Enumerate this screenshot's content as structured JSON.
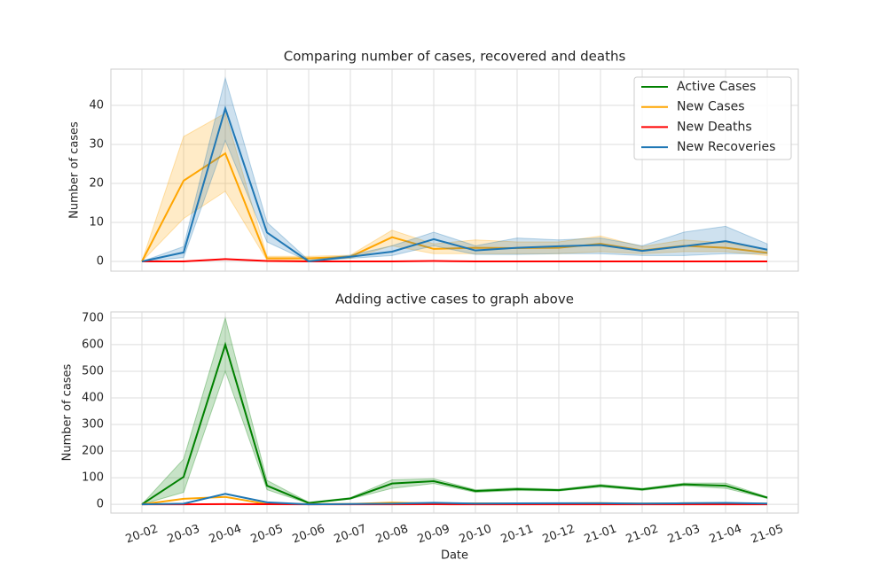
{
  "chart_data": [
    {
      "type": "line",
      "title": "Comparing number of cases, recovered and deaths",
      "ylabel": "Number of cases",
      "categories": [
        "20-02",
        "20-03",
        "20-04",
        "20-05",
        "20-06",
        "20-07",
        "20-08",
        "20-09",
        "20-10",
        "20-11",
        "20-12",
        "21-01",
        "21-02",
        "21-03",
        "21-04",
        "21-05"
      ],
      "ylim": [
        -2.5,
        49.3
      ],
      "yticks": [
        0,
        10,
        20,
        30,
        40
      ],
      "grid": true,
      "legend": "upper right",
      "series": [
        {
          "name": "Active Cases",
          "color": "#008000",
          "values": [
            null,
            null,
            null,
            null,
            null,
            null,
            null,
            null,
            null,
            null,
            null,
            null,
            null,
            null,
            null,
            null
          ]
        },
        {
          "name": "New Cases",
          "color": "#ffa500",
          "values": [
            0,
            20.7,
            27.7,
            0.8,
            0.8,
            1.2,
            6.2,
            3.2,
            3.5,
            3.4,
            3.5,
            4.5,
            2.8,
            4.0,
            3.5,
            2.2
          ],
          "band_low": [
            0,
            11,
            18,
            0.3,
            0.3,
            0.8,
            4,
            2,
            2,
            2,
            2,
            2.5,
            2,
            2.5,
            2.5,
            1.5
          ],
          "band_high": [
            0,
            32,
            38,
            1.3,
            1.3,
            1.6,
            8,
            4.5,
            5.5,
            5,
            5,
            6.5,
            3.8,
            5.5,
            4.8,
            3
          ]
        },
        {
          "name": "New Deaths",
          "color": "#ff0000",
          "values": [
            0,
            0,
            0.6,
            0.1,
            0,
            0,
            0,
            0.1,
            0,
            0,
            0,
            0,
            0,
            0,
            0,
            0
          ]
        },
        {
          "name": "New Recoveries",
          "color": "#1f77b4",
          "values": [
            0,
            2.3,
            39.2,
            7.4,
            0,
            1.2,
            2.5,
            5.7,
            2.8,
            3.5,
            3.9,
            4.2,
            2.7,
            3.9,
            5.2,
            3.0
          ],
          "band_low": [
            0,
            1,
            31,
            5,
            0,
            0.8,
            1.5,
            4,
            1.8,
            1.8,
            2,
            2,
            1.5,
            1.5,
            2,
            2
          ],
          "band_high": [
            0,
            3.8,
            47,
            10,
            0.3,
            1.6,
            4,
            7.5,
            4,
            6,
            5.5,
            6,
            4,
            7.5,
            9,
            4.5
          ]
        }
      ]
    },
    {
      "type": "line",
      "title": "Adding active cases to graph above",
      "ylabel": "Number of cases",
      "xlabel": "Date",
      "categories": [
        "20-02",
        "20-03",
        "20-04",
        "20-05",
        "20-06",
        "20-07",
        "20-08",
        "20-09",
        "20-10",
        "20-11",
        "20-12",
        "21-01",
        "21-02",
        "21-03",
        "21-04",
        "21-05"
      ],
      "ylim": [
        -33,
        723
      ],
      "yticks": [
        0,
        100,
        200,
        300,
        400,
        500,
        600,
        700
      ],
      "grid": true,
      "series": [
        {
          "color": "#008000",
          "values": [
            0,
            103,
            600,
            70,
            5,
            22,
            78,
            87,
            50,
            57,
            53,
            70,
            56,
            75,
            70,
            25
          ],
          "band_low": [
            0,
            45,
            500,
            55,
            3,
            20,
            60,
            78,
            45,
            52,
            50,
            65,
            52,
            70,
            60,
            22
          ],
          "band_high": [
            0,
            170,
            700,
            90,
            8,
            25,
            92,
            96,
            55,
            62,
            57,
            75,
            60,
            80,
            80,
            28
          ]
        },
        {
          "color": "#ffa500",
          "values": [
            0,
            20.7,
            27.7,
            0.8,
            0.8,
            1.2,
            6.2,
            3.2,
            3.5,
            3.4,
            3.5,
            4.5,
            2.8,
            4.0,
            3.5,
            2.2
          ]
        },
        {
          "color": "#ff0000",
          "values": [
            0,
            0,
            0.6,
            0.1,
            0,
            0,
            0,
            0.1,
            0,
            0,
            0,
            0,
            0,
            0,
            0,
            0
          ]
        },
        {
          "color": "#1f77b4",
          "values": [
            0,
            2.3,
            39.2,
            7.4,
            0,
            1.2,
            2.5,
            5.7,
            2.8,
            3.5,
            3.9,
            4.2,
            2.7,
            3.9,
            5.2,
            3.0
          ]
        }
      ]
    }
  ]
}
